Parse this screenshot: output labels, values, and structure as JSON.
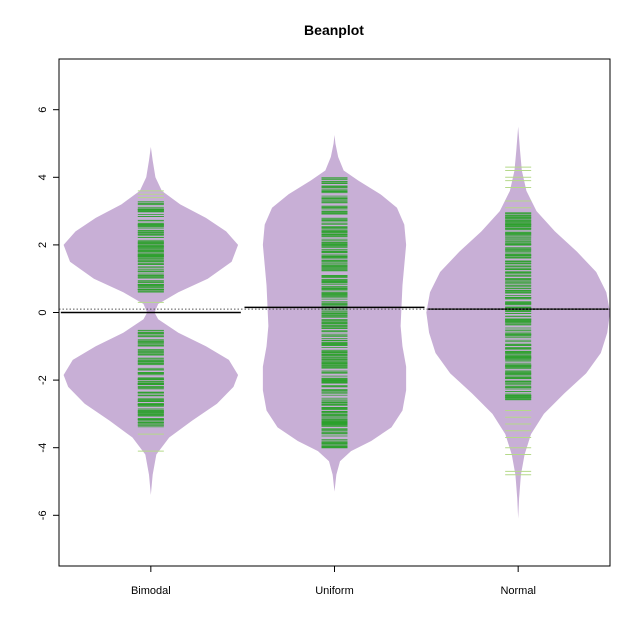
{
  "chart_data": {
    "type": "beanplot",
    "title": "Beanplot",
    "xlabel": "",
    "ylabel": "",
    "categories": [
      "Bimodal",
      "Uniform",
      "Normal"
    ],
    "ylim": [
      -7.5,
      7.5
    ],
    "yticks": [
      -6,
      -4,
      -2,
      0,
      2,
      4,
      6
    ],
    "overall_mean": 0.1,
    "grid": false,
    "legend": "none",
    "colors": {
      "bean_fill": "#c8afd6",
      "bean_lines": "#2ca02c",
      "bean_lines_light": "#b5d98a",
      "mean_line": "#000000",
      "overall_line": "#555555"
    },
    "beans": [
      {
        "name": "Bimodal",
        "mean": 0.0,
        "range": [
          -5.4,
          4.9
        ],
        "density": [
          [
            -5.4,
            0.0
          ],
          [
            -4.8,
            0.02
          ],
          [
            -4.2,
            0.06
          ],
          [
            -3.7,
            0.2
          ],
          [
            -3.2,
            0.45
          ],
          [
            -2.7,
            0.72
          ],
          [
            -2.2,
            0.9
          ],
          [
            -1.85,
            0.95
          ],
          [
            -1.4,
            0.85
          ],
          [
            -1.0,
            0.6
          ],
          [
            -0.6,
            0.3
          ],
          [
            -0.2,
            0.08
          ],
          [
            0.0,
            0.04
          ],
          [
            0.25,
            0.08
          ],
          [
            0.6,
            0.3
          ],
          [
            1.0,
            0.62
          ],
          [
            1.5,
            0.88
          ],
          [
            2.0,
            0.95
          ],
          [
            2.4,
            0.82
          ],
          [
            2.8,
            0.6
          ],
          [
            3.2,
            0.32
          ],
          [
            3.6,
            0.12
          ],
          [
            4.0,
            0.05
          ],
          [
            4.5,
            0.02
          ],
          [
            4.9,
            0.0
          ]
        ],
        "observations_dense": [
          [
            -3.4,
            -0.5
          ],
          [
            0.6,
            3.3
          ]
        ],
        "observations_sparse": [
          -4.1,
          -3.6,
          0.3,
          3.4,
          3.5,
          3.6
        ]
      },
      {
        "name": "Uniform",
        "mean": 0.15,
        "range": [
          -5.3,
          5.25
        ],
        "density": [
          [
            -5.3,
            0.0
          ],
          [
            -4.8,
            0.02
          ],
          [
            -4.4,
            0.06
          ],
          [
            -4.1,
            0.18
          ],
          [
            -3.8,
            0.4
          ],
          [
            -3.4,
            0.62
          ],
          [
            -2.9,
            0.74
          ],
          [
            -2.3,
            0.78
          ],
          [
            -1.6,
            0.78
          ],
          [
            -1.0,
            0.74
          ],
          [
            -0.4,
            0.72
          ],
          [
            0.2,
            0.73
          ],
          [
            0.8,
            0.74
          ],
          [
            1.4,
            0.76
          ],
          [
            2.0,
            0.78
          ],
          [
            2.6,
            0.76
          ],
          [
            3.1,
            0.68
          ],
          [
            3.5,
            0.5
          ],
          [
            3.9,
            0.26
          ],
          [
            4.2,
            0.1
          ],
          [
            4.6,
            0.04
          ],
          [
            5.0,
            0.01
          ],
          [
            5.25,
            0.0
          ]
        ],
        "observations_dense": [
          [
            -4.0,
            4.0
          ]
        ],
        "observations_sparse": []
      },
      {
        "name": "Normal",
        "mean": 0.1,
        "range": [
          -6.1,
          5.5
        ],
        "density": [
          [
            -6.1,
            0.0
          ],
          [
            -5.5,
            0.01
          ],
          [
            -4.8,
            0.03
          ],
          [
            -4.2,
            0.07
          ],
          [
            -3.6,
            0.14
          ],
          [
            -3.0,
            0.28
          ],
          [
            -2.4,
            0.5
          ],
          [
            -1.8,
            0.74
          ],
          [
            -1.2,
            0.9
          ],
          [
            -0.6,
            0.97
          ],
          [
            0.0,
            1.0
          ],
          [
            0.6,
            0.96
          ],
          [
            1.2,
            0.85
          ],
          [
            1.8,
            0.64
          ],
          [
            2.4,
            0.4
          ],
          [
            3.0,
            0.2
          ],
          [
            3.6,
            0.09
          ],
          [
            4.2,
            0.04
          ],
          [
            4.8,
            0.02
          ],
          [
            5.5,
            0.0
          ]
        ],
        "observations_dense": [
          [
            -2.6,
            3.0
          ]
        ],
        "observations_sparse": [
          -4.8,
          -4.7,
          -4.2,
          -4.0,
          -3.7,
          -3.5,
          -3.3,
          -3.1,
          -2.9,
          3.1,
          3.3,
          3.7,
          3.9,
          4.0,
          4.2,
          4.3
        ]
      }
    ]
  }
}
